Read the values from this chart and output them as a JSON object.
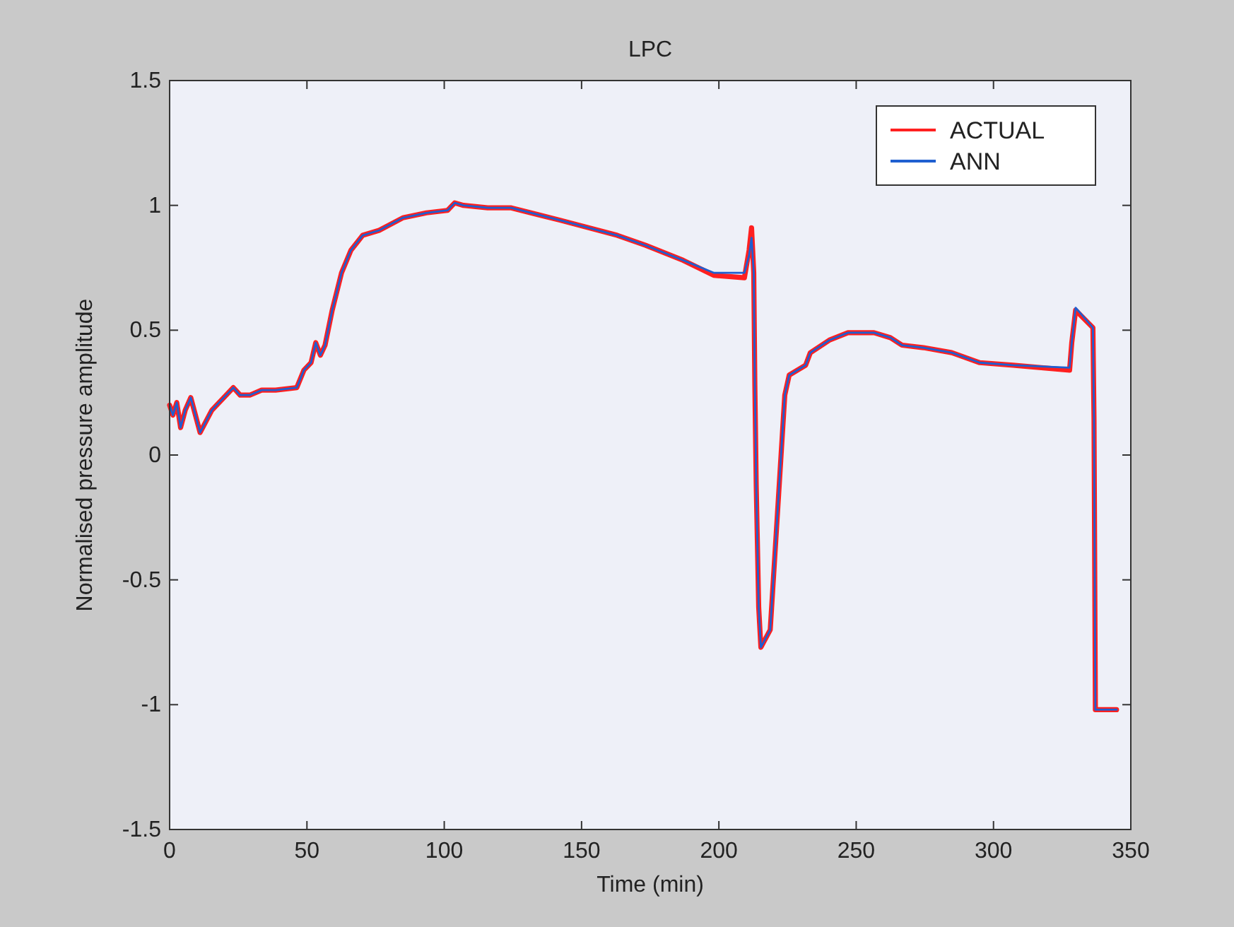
{
  "chart_data": {
    "type": "line",
    "title": "LPC",
    "xlabel": "Time (min)",
    "ylabel": "Normalised pressure amplitude",
    "x": [
      0,
      1.2,
      2.6,
      4,
      5.7,
      7.7,
      11.1,
      15.4,
      23.2,
      25.7,
      29.2,
      33.5,
      38.6,
      46.3,
      48.9,
      51.5,
      53.2,
      54.9,
      56.6,
      59.2,
      62.6,
      66,
      70.3,
      76.3,
      84.9,
      93.5,
      101.2,
      103.8,
      107,
      115.8,
      124.4,
      142.4,
      163,
      173.3,
      187,
      198.1,
      209.3,
      211,
      211.9,
      212.7,
      213.1,
      213.6,
      214.5,
      215.3,
      218.7,
      220.4,
      222.2,
      224,
      225.6,
      231.6,
      233.3,
      240.2,
      247,
      256.5,
      262.5,
      266.7,
      274.5,
      284.8,
      295,
      307.1,
      327.7,
      328.5,
      329.9,
      336.2,
      336.6,
      337.1,
      344.8
    ],
    "series": [
      {
        "name": "ACTUAL",
        "color": "#ff2020",
        "values": [
          0.2,
          0.16,
          0.21,
          0.11,
          0.18,
          0.23,
          0.09,
          0.18,
          0.27,
          0.24,
          0.24,
          0.26,
          0.26,
          0.27,
          0.34,
          0.37,
          0.45,
          0.4,
          0.44,
          0.58,
          0.73,
          0.82,
          0.88,
          0.9,
          0.95,
          0.97,
          0.98,
          1.01,
          1,
          0.99,
          0.99,
          0.94,
          0.88,
          0.84,
          0.78,
          0.72,
          0.71,
          0.82,
          0.91,
          0.73,
          0.28,
          -0.12,
          -0.61,
          -0.77,
          -0.7,
          -0.4,
          -0.08,
          0.24,
          0.32,
          0.36,
          0.41,
          0.46,
          0.49,
          0.49,
          0.47,
          0.44,
          0.43,
          0.41,
          0.37,
          0.36,
          0.34,
          0.45,
          0.58,
          0.51,
          0.14,
          -1.02,
          -1.02
        ]
      },
      {
        "name": "ANN",
        "color": "#1f5fd0",
        "values": [
          0.2,
          0.16,
          0.21,
          0.11,
          0.18,
          0.23,
          0.09,
          0.18,
          0.27,
          0.24,
          0.24,
          0.26,
          0.26,
          0.27,
          0.34,
          0.37,
          0.45,
          0.4,
          0.44,
          0.58,
          0.73,
          0.82,
          0.88,
          0.9,
          0.95,
          0.97,
          0.98,
          1.01,
          1,
          0.99,
          0.99,
          0.94,
          0.88,
          0.84,
          0.78,
          0.73,
          0.73,
          0.8,
          0.87,
          0.73,
          0.28,
          -0.12,
          -0.61,
          -0.77,
          -0.7,
          -0.4,
          -0.08,
          0.24,
          0.32,
          0.36,
          0.41,
          0.46,
          0.49,
          0.49,
          0.47,
          0.44,
          0.43,
          0.41,
          0.37,
          0.36,
          0.35,
          0.45,
          0.59,
          0.51,
          0.14,
          -1.02,
          -1.02
        ]
      }
    ],
    "xlim": [
      0,
      350
    ],
    "xticks": [
      0,
      50,
      100,
      150,
      200,
      250,
      300,
      350
    ],
    "ylim": [
      -1.5,
      1.5
    ],
    "yticks": [
      -1.5,
      -1,
      -0.5,
      0,
      0.5,
      1,
      1.5
    ],
    "grid": false,
    "legend": "top right",
    "line_style": "solid",
    "marker": "none"
  }
}
